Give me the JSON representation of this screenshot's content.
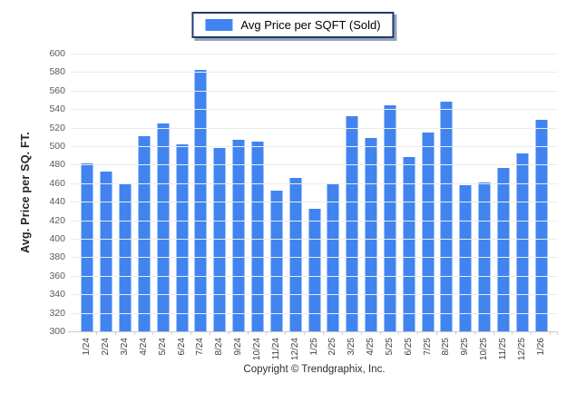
{
  "legend": {
    "label": "Avg Price per SQFT (Sold)",
    "swatch_color": "#4184f0",
    "border_color": "#1e3c6d",
    "shadow_color": "#94a1b8"
  },
  "footer": {
    "copyright": "Copyright © Trendgraphix, Inc."
  },
  "chart_data": {
    "type": "bar",
    "title": "Avg Price per SQFT (Sold)",
    "ylabel": "Avg. Price per SQ. FT.",
    "xlabel": "",
    "ylim": [
      300,
      600
    ],
    "ytick_step": 20,
    "grid": "horizontal",
    "legend_position": "top-center",
    "bar_color": "#4184f0",
    "gridline_color": "#ececec",
    "axis_color": "#c9c9c9",
    "categories": [
      "1/24",
      "2/24",
      "3/24",
      "4/24",
      "5/24",
      "6/24",
      "7/24",
      "8/24",
      "9/24",
      "10/24",
      "11/24",
      "12/24",
      "1/25",
      "2/25",
      "3/25",
      "4/25",
      "5/25",
      "6/25",
      "7/25",
      "8/25",
      "9/25",
      "10/25",
      "11/25",
      "12/25",
      "1/26"
    ],
    "values": [
      481,
      473,
      460,
      511,
      525,
      502,
      582,
      498,
      507,
      505,
      452,
      466,
      432,
      459,
      532,
      509,
      544,
      488,
      515,
      548,
      458,
      461,
      476,
      492,
      528
    ]
  }
}
